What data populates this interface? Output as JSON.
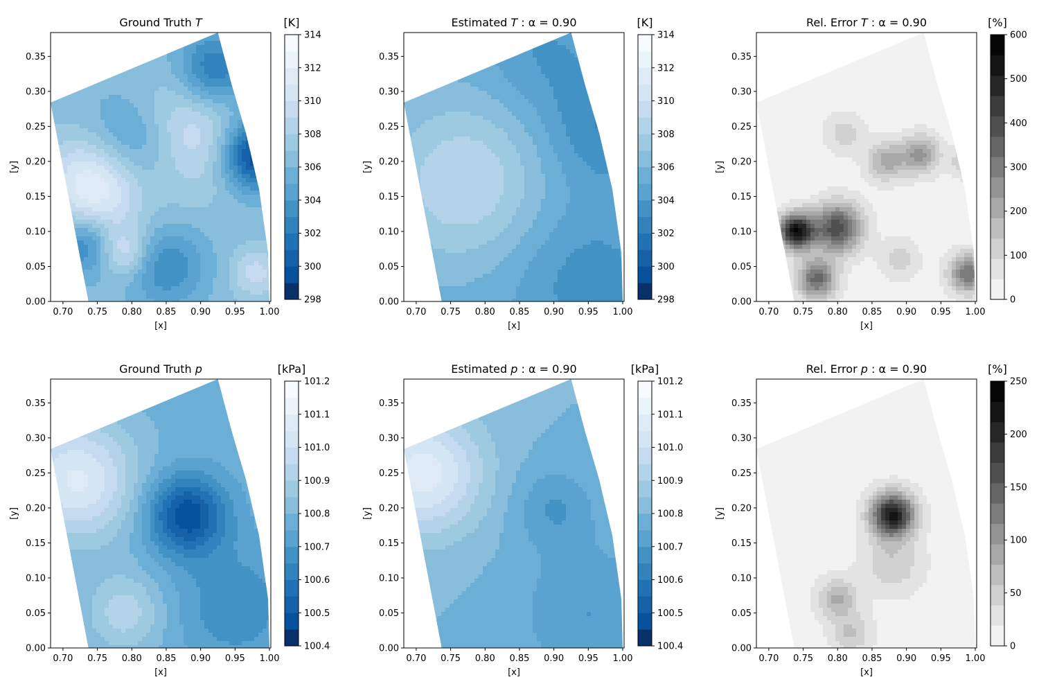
{
  "figure": {
    "x_ticks": [
      "0.70",
      "0.75",
      "0.80",
      "0.85",
      "0.90",
      "0.95",
      "1.00"
    ],
    "y_ticks": [
      "0.00",
      "0.05",
      "0.10",
      "0.15",
      "0.20",
      "0.25",
      "0.30",
      "0.35"
    ],
    "x_label": "[x]",
    "y_label": "[y]",
    "xlim": [
      0.682,
      1.002
    ],
    "ylim": [
      0.0,
      0.384
    ]
  },
  "colormaps": {
    "blues": [
      "#08306b",
      "#08519c",
      "#1661a8",
      "#2171b5",
      "#3282be",
      "#4292c6",
      "#5aa2cf",
      "#6baed6",
      "#88bedc",
      "#9ecae1",
      "#b2d3e8",
      "#c6dbef",
      "#d4e5f4",
      "#deebf7",
      "#ebf3fb",
      "#f7fbff"
    ],
    "greys": [
      "#f2f2f2",
      "#e3e3e3",
      "#d1d1d1",
      "#bdbdbd",
      "#a8a8a8",
      "#939393",
      "#7c7c7c",
      "#666666",
      "#505050",
      "#3b3b3b",
      "#262626",
      "#141414",
      "#050505"
    ]
  },
  "chart_data": [
    {
      "type": "heatmap",
      "title_main": "Ground Truth ",
      "title_var": "T",
      "title_tail": "",
      "colorbar_unit": "[K]",
      "colormap": "blues",
      "vmin": 298,
      "vmax": 314,
      "colorbar_ticks": [
        "298",
        "300",
        "302",
        "304",
        "306",
        "308",
        "310",
        "312",
        "314"
      ],
      "features": [
        {
          "x": 0.8,
          "y": 0.22,
          "amp": -4.5,
          "s": 0.05
        },
        {
          "x": 0.98,
          "y": 0.21,
          "amp": -8,
          "s": 0.035
        },
        {
          "x": 0.75,
          "y": 0.17,
          "amp": 6.5,
          "s": 0.05
        },
        {
          "x": 0.92,
          "y": 0.33,
          "amp": -5,
          "s": 0.04
        },
        {
          "x": 0.88,
          "y": 0.24,
          "amp": 4,
          "s": 0.06
        },
        {
          "x": 0.73,
          "y": 0.08,
          "amp": -4,
          "s": 0.03
        },
        {
          "x": 0.85,
          "y": 0.05,
          "amp": -3.5,
          "s": 0.04
        },
        {
          "x": 0.79,
          "y": 0.07,
          "amp": 3.5,
          "s": 0.025
        },
        {
          "x": 0.98,
          "y": 0.04,
          "amp": 3,
          "s": 0.025
        }
      ],
      "base": 306.5
    },
    {
      "type": "heatmap",
      "title_main": "Estimated ",
      "title_var": "T",
      "title_tail": " : α = 0.90",
      "colorbar_unit": "[K]",
      "colormap": "blues",
      "vmin": 298,
      "vmax": 314,
      "colorbar_ticks": [
        "298",
        "300",
        "302",
        "304",
        "306",
        "308",
        "310",
        "312",
        "314"
      ],
      "features": [
        {
          "x": 0.77,
          "y": 0.17,
          "amp": 3.5,
          "s": 0.08
        },
        {
          "x": 0.97,
          "y": 0.25,
          "amp": -2.5,
          "s": 0.06
        },
        {
          "x": 0.95,
          "y": 0.03,
          "amp": -2,
          "s": 0.08
        },
        {
          "x": 0.88,
          "y": 0.36,
          "amp": -1.5,
          "s": 0.06
        }
      ],
      "base": 305.5
    },
    {
      "type": "heatmap",
      "title_main": "Rel. Error ",
      "title_var": "T",
      "title_tail": " : α = 0.90",
      "colorbar_unit": "[%]",
      "colormap": "greys",
      "vmin": 0,
      "vmax": 600,
      "colorbar_ticks": [
        "0",
        "100",
        "200",
        "300",
        "400",
        "500",
        "600"
      ],
      "features": [
        {
          "x": 0.74,
          "y": 0.1,
          "amp": 520,
          "s": 0.018
        },
        {
          "x": 0.8,
          "y": 0.105,
          "amp": 380,
          "s": 0.025
        },
        {
          "x": 0.77,
          "y": 0.032,
          "amp": 320,
          "s": 0.02
        },
        {
          "x": 0.99,
          "y": 0.04,
          "amp": 300,
          "s": 0.02
        },
        {
          "x": 0.87,
          "y": 0.2,
          "amp": 180,
          "s": 0.02
        },
        {
          "x": 0.92,
          "y": 0.21,
          "amp": 220,
          "s": 0.02
        },
        {
          "x": 0.99,
          "y": 0.2,
          "amp": 180,
          "s": 0.015
        },
        {
          "x": 0.89,
          "y": 0.06,
          "amp": 100,
          "s": 0.02
        },
        {
          "x": 0.81,
          "y": 0.24,
          "amp": 100,
          "s": 0.02
        }
      ],
      "base": 20
    },
    {
      "type": "heatmap",
      "title_main": "Ground Truth ",
      "title_var": "p",
      "title_tail": "",
      "colorbar_unit": "[kPa]",
      "colormap": "blues",
      "vmin": 100.4,
      "vmax": 101.2,
      "colorbar_ticks": [
        "100.4",
        "100.5",
        "100.6",
        "100.7",
        "100.8",
        "100.9",
        "101.0",
        "101.1",
        "101.2"
      ],
      "features": [
        {
          "x": 0.88,
          "y": 0.19,
          "amp": -0.32,
          "s": 0.04
        },
        {
          "x": 0.95,
          "y": 0.06,
          "amp": -0.12,
          "s": 0.06
        },
        {
          "x": 0.72,
          "y": 0.24,
          "amp": 0.28,
          "s": 0.06
        },
        {
          "x": 0.79,
          "y": 0.05,
          "amp": 0.15,
          "s": 0.04
        }
      ],
      "base": 100.78
    },
    {
      "type": "heatmap",
      "title_main": "Estimated ",
      "title_var": "p",
      "title_tail": " : α = 0.90",
      "colorbar_unit": "[kPa]",
      "colormap": "blues",
      "vmin": 100.4,
      "vmax": 101.2,
      "colorbar_ticks": [
        "100.4",
        "100.5",
        "100.6",
        "100.7",
        "100.8",
        "100.9",
        "101.0",
        "101.1",
        "101.2"
      ],
      "features": [
        {
          "x": 0.9,
          "y": 0.2,
          "amp": -0.1,
          "s": 0.04
        },
        {
          "x": 0.95,
          "y": 0.05,
          "amp": -0.1,
          "s": 0.07
        },
        {
          "x": 0.71,
          "y": 0.25,
          "amp": 0.28,
          "s": 0.06
        }
      ],
      "base": 100.8
    },
    {
      "type": "heatmap",
      "title_main": "Rel. Error ",
      "title_var": "p",
      "title_tail": " : α = 0.90",
      "colorbar_unit": "[%]",
      "colormap": "greys",
      "vmin": 0,
      "vmax": 250,
      "colorbar_ticks": [
        "0",
        "50",
        "100",
        "150",
        "200",
        "250"
      ],
      "features": [
        {
          "x": 0.88,
          "y": 0.19,
          "amp": 210,
          "s": 0.022
        },
        {
          "x": 0.8,
          "y": 0.07,
          "amp": 70,
          "s": 0.02
        },
        {
          "x": 0.88,
          "y": 0.12,
          "amp": 45,
          "s": 0.03
        },
        {
          "x": 0.82,
          "y": 0.02,
          "amp": 50,
          "s": 0.02
        }
      ],
      "base": 10
    }
  ]
}
